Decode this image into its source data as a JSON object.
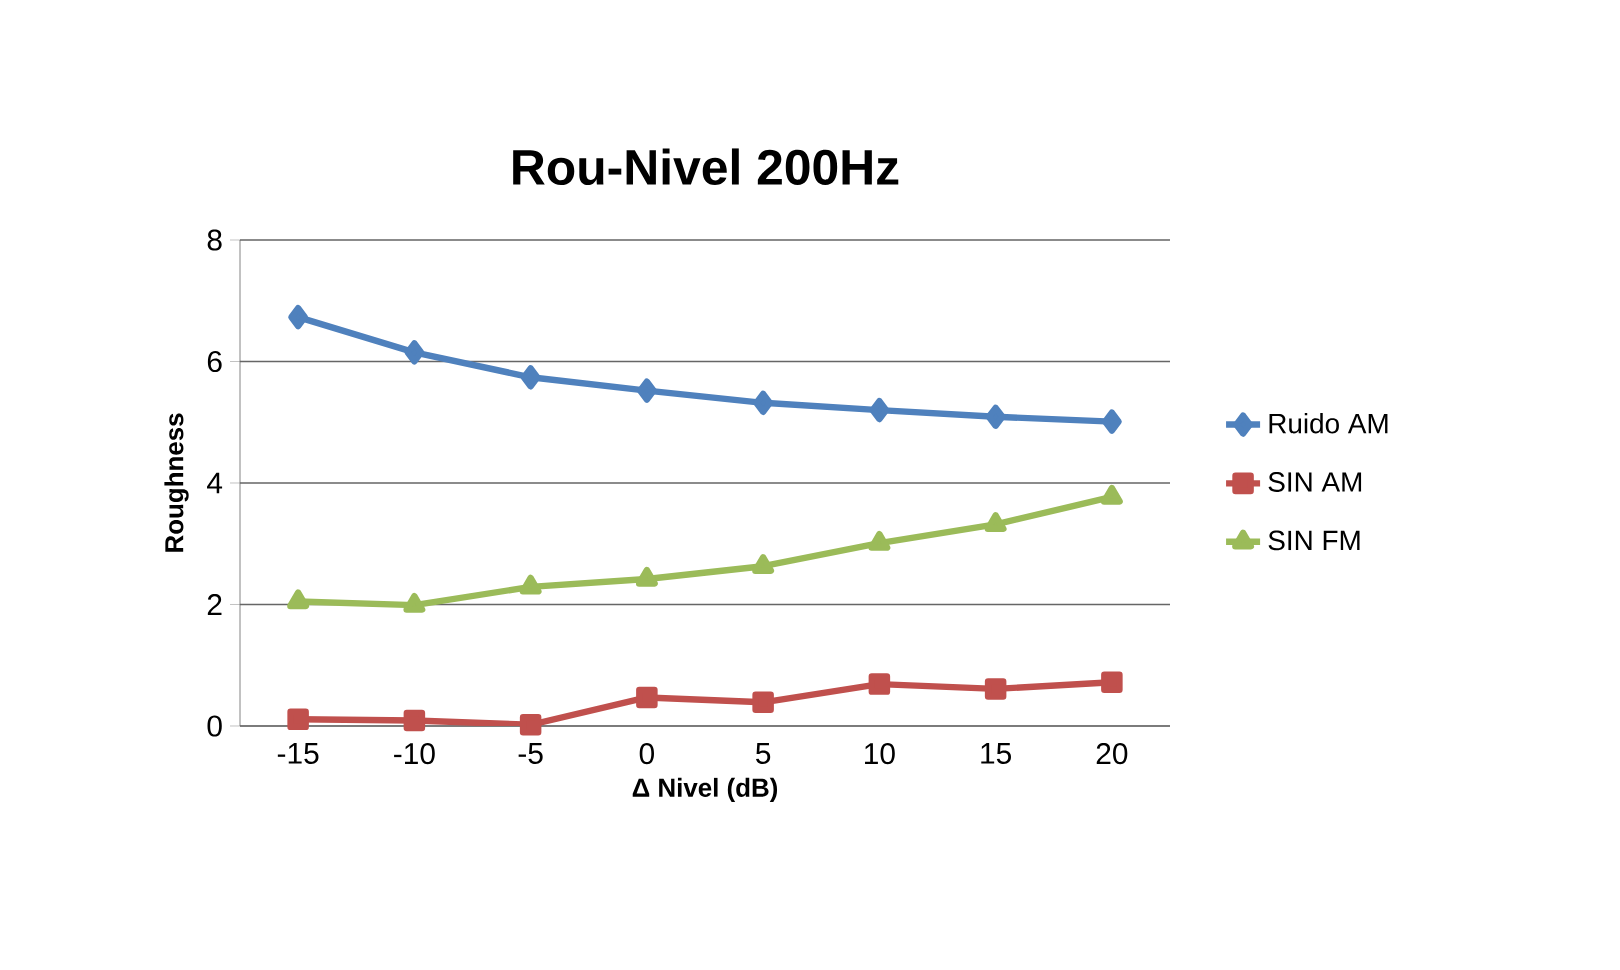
{
  "chart_data": {
    "type": "line",
    "title": "Rou-Nivel 200Hz",
    "xlabel": "Δ Nivel (dB)",
    "ylabel": "Roughness",
    "categories": [
      "-15",
      "-10",
      "-5",
      "0",
      "5",
      "10",
      "15",
      "20"
    ],
    "series": [
      {
        "name": "Ruido AM",
        "color": "#4f81bd",
        "marker": "diamond",
        "values": [
          6.73,
          6.15,
          5.74,
          5.52,
          5.32,
          5.2,
          5.09,
          5.01
        ]
      },
      {
        "name": "SIN AM",
        "color": "#c0504d",
        "marker": "square",
        "values": [
          0.11,
          0.09,
          0.02,
          0.47,
          0.39,
          0.69,
          0.61,
          0.72
        ]
      },
      {
        "name": "SIN FM",
        "color": "#9bbb59",
        "marker": "triangle",
        "values": [
          2.05,
          1.99,
          2.29,
          2.42,
          2.63,
          3.01,
          3.32,
          3.77
        ]
      }
    ],
    "ylim": [
      0,
      8
    ],
    "yticks": [
      0,
      2,
      4,
      6,
      8
    ],
    "grid": "y",
    "legend": "right"
  }
}
